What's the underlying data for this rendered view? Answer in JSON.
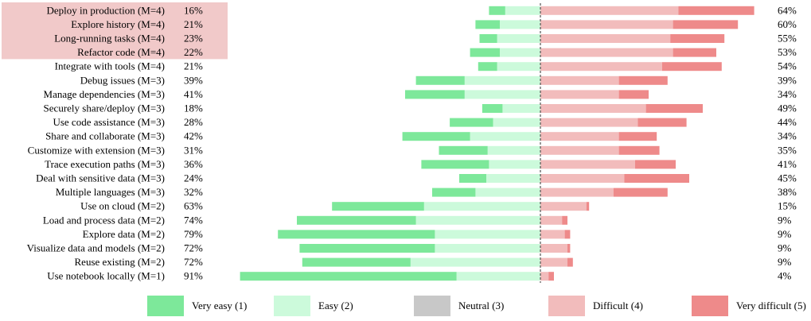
{
  "chart_data": {
    "type": "bar",
    "subtype": "diverging-stacked",
    "title": "",
    "xlabel": "",
    "ylabel": "",
    "highlighted_rows": 4,
    "categories": [
      "Deploy in production (M=4)",
      "Explore history (M=4)",
      "Long-running tasks (M=4)",
      "Refactor code (M=4)",
      "Integrate with tools (M=4)",
      "Debug issues (M=3)",
      "Manage dependencies (M=3)",
      "Securely share/deploy (M=3)",
      "Use code assistance (M=3)",
      "Share and collaborate (M=3)",
      "Customize with extension (M=3)",
      "Trace execution paths (M=3)",
      "Deal with sensitive data (M=3)",
      "Multiple languages (M=3)",
      "Use on cloud (M=2)",
      "Load and process data (M=2)",
      "Explore data (M=2)",
      "Visualize data and models (M=2)",
      "Reuse existing (M=2)",
      "Use notebook locally (M=1)"
    ],
    "left_percent_labels": [
      "16%",
      "21%",
      "23%",
      "22%",
      "21%",
      "39%",
      "41%",
      "18%",
      "28%",
      "42%",
      "31%",
      "36%",
      "24%",
      "32%",
      "63%",
      "74%",
      "79%",
      "72%",
      "72%",
      "91%"
    ],
    "right_percent_labels": [
      "64%",
      "60%",
      "55%",
      "53%",
      "54%",
      "39%",
      "34%",
      "49%",
      "44%",
      "34%",
      "35%",
      "41%",
      "45%",
      "38%",
      "15%",
      "9%",
      "9%",
      "9%",
      "9%",
      "4%"
    ],
    "series": [
      {
        "name": "Very easy (1)",
        "color": "#7de89a",
        "values": [
          6,
          9,
          6.5,
          11,
          7,
          18,
          22,
          7.5,
          16,
          25,
          18,
          25,
          10,
          16,
          34,
          44,
          58,
          50,
          40,
          80
        ]
      },
      {
        "name": "Easy (2)",
        "color": "#ccfadb",
        "values": [
          13,
          15,
          16,
          15,
          16,
          28,
          28,
          14,
          17.5,
          26,
          19.5,
          19,
          20,
          24,
          43,
          46,
          39,
          39,
          48,
          31
        ]
      },
      {
        "name": "Neutral (3)",
        "color": "#c8c8c8",
        "values": [
          0,
          0,
          0,
          0,
          0,
          0,
          0,
          0,
          0,
          0,
          0,
          0,
          0,
          0,
          0,
          0,
          0,
          0,
          0,
          0
        ]
      },
      {
        "name": "Difficult (4)",
        "color": "#f2bcbc",
        "values": [
          51,
          49,
          48,
          49,
          45,
          29,
          29,
          39,
          36,
          29,
          29,
          35,
          31,
          27,
          17,
          8,
          9,
          10,
          10,
          3
        ]
      },
      {
        "name": "Very difficult (5)",
        "color": "#ee8a8a",
        "values": [
          28,
          24,
          20,
          16,
          22,
          18,
          11,
          21,
          18,
          14,
          15,
          15,
          24,
          20,
          1,
          2,
          2,
          1,
          2,
          2
        ]
      }
    ],
    "xlim": [
      -100,
      80
    ],
    "center_line": "Neutral",
    "legend_position": "bottom"
  }
}
